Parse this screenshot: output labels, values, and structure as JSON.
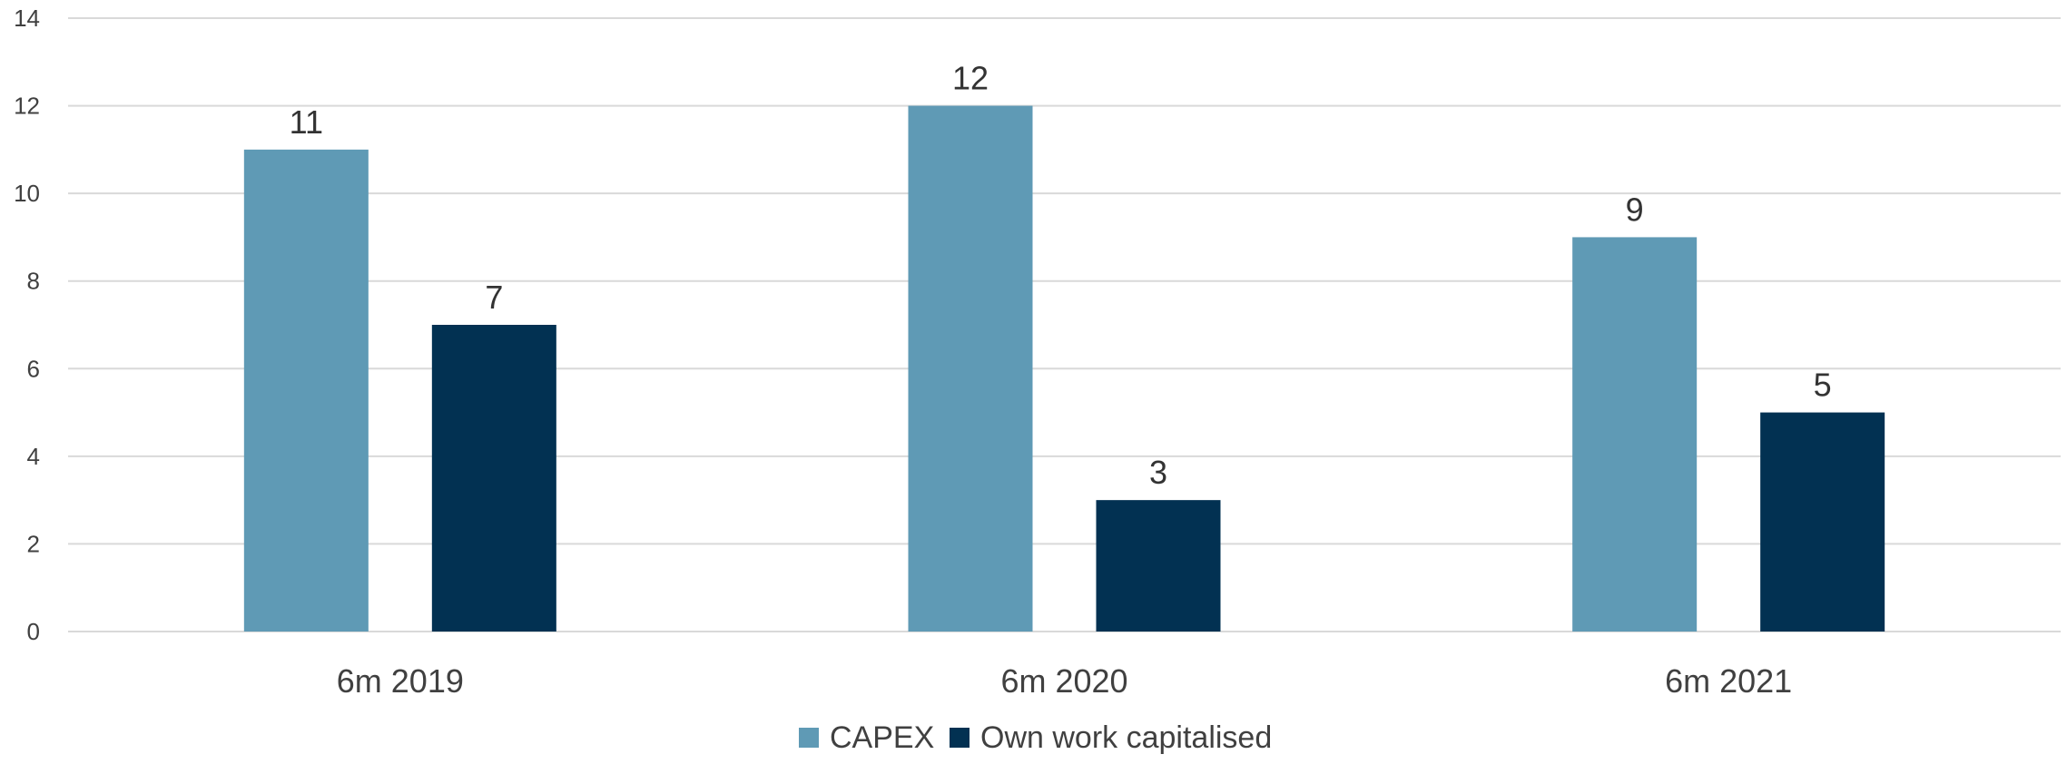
{
  "chart_data": {
    "type": "bar",
    "title": "",
    "xlabel": "",
    "ylabel": "",
    "categories": [
      "6m 2019",
      "6m 2020",
      "6m 2021"
    ],
    "ylim": [
      0,
      14
    ],
    "yticks": [
      0,
      2,
      4,
      6,
      8,
      10,
      12,
      14
    ],
    "grid": true,
    "legend_position": "bottom",
    "series": [
      {
        "name": "CAPEX",
        "values": [
          11,
          12,
          9
        ],
        "color": "#5f9ab5"
      },
      {
        "name": "Own work capitalised",
        "values": [
          7,
          3,
          5
        ],
        "color": "#023152"
      }
    ]
  }
}
